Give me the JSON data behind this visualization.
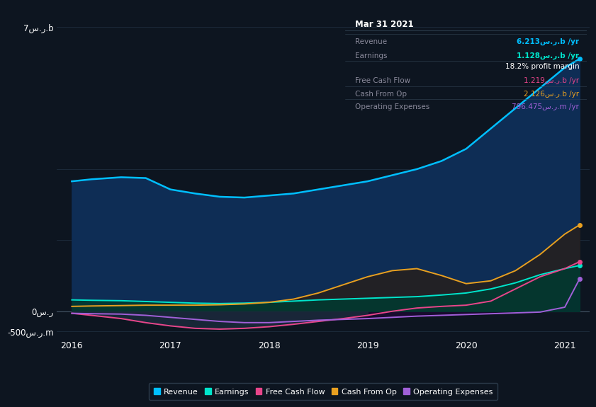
{
  "background_color": "#0d1520",
  "plot_bg_color": "#0d1520",
  "x_years": [
    2016.0,
    2016.2,
    2016.5,
    2016.75,
    2017.0,
    2017.25,
    2017.5,
    2017.75,
    2018.0,
    2018.25,
    2018.5,
    2018.75,
    2019.0,
    2019.25,
    2019.5,
    2019.75,
    2020.0,
    2020.25,
    2020.5,
    2020.75,
    2021.0,
    2021.15
  ],
  "revenue": [
    3.2,
    3.25,
    3.3,
    3.28,
    3.0,
    2.9,
    2.82,
    2.8,
    2.85,
    2.9,
    3.0,
    3.1,
    3.2,
    3.35,
    3.5,
    3.7,
    4.0,
    4.5,
    5.0,
    5.5,
    6.0,
    6.213
  ],
  "earnings": [
    0.28,
    0.27,
    0.26,
    0.24,
    0.22,
    0.2,
    0.19,
    0.2,
    0.22,
    0.25,
    0.28,
    0.3,
    0.32,
    0.34,
    0.36,
    0.4,
    0.45,
    0.55,
    0.7,
    0.9,
    1.05,
    1.128
  ],
  "free_cash_flow": [
    -0.05,
    -0.1,
    -0.18,
    -0.28,
    -0.36,
    -0.42,
    -0.44,
    -0.42,
    -0.38,
    -0.32,
    -0.25,
    -0.18,
    -0.1,
    0.0,
    0.08,
    0.12,
    0.15,
    0.25,
    0.55,
    0.85,
    1.05,
    1.219
  ],
  "cash_from_op": [
    0.12,
    0.13,
    0.14,
    0.15,
    0.15,
    0.15,
    0.16,
    0.18,
    0.22,
    0.3,
    0.45,
    0.65,
    0.85,
    1.0,
    1.05,
    0.88,
    0.68,
    0.75,
    1.0,
    1.4,
    1.9,
    2.126
  ],
  "operating_expenses": [
    -0.05,
    -0.06,
    -0.07,
    -0.1,
    -0.15,
    -0.2,
    -0.25,
    -0.28,
    -0.28,
    -0.25,
    -0.22,
    -0.2,
    -0.18,
    -0.15,
    -0.12,
    -0.1,
    -0.08,
    -0.06,
    -0.04,
    -0.02,
    0.1,
    0.796
  ],
  "colors": {
    "revenue": "#00bfff",
    "earnings": "#00e5cc",
    "free_cash_flow": "#e8458a",
    "cash_from_op": "#e8a020",
    "operating_expenses": "#a060d8"
  },
  "info_box": {
    "title": "Mar 31 2021",
    "rows": [
      {
        "label": "Revenue",
        "value": "6.213س.ر.b /yr",
        "color": "#00bfff"
      },
      {
        "label": "Earnings",
        "value": "1.128س.ر.b /yr",
        "color": "#00e5cc"
      },
      {
        "label": "",
        "value": "18.2% profit margin",
        "color": "#ffffff"
      },
      {
        "label": "Free Cash Flow",
        "value": "1.219س.ر.b /yr",
        "color": "#e8458a"
      },
      {
        "label": "Cash From Op",
        "value": "2.126س.ر.b /yr",
        "color": "#e8a020"
      },
      {
        "label": "Operating Expenses",
        "value": "796.475س.ر.m /yr",
        "color": "#a060d8"
      }
    ]
  },
  "legend": [
    {
      "label": "Revenue",
      "color": "#00bfff"
    },
    {
      "label": "Earnings",
      "color": "#00e5cc"
    },
    {
      "label": "Free Cash Flow",
      "color": "#e8458a"
    },
    {
      "label": "Cash From Op",
      "color": "#e8a020"
    },
    {
      "label": "Operating Expenses",
      "color": "#a060d8"
    }
  ],
  "ylim": [
    -0.65,
    7.5
  ],
  "xlim": [
    2015.85,
    2021.25
  ],
  "xticks": [
    2016,
    2017,
    2018,
    2019,
    2020,
    2021
  ],
  "y_top_label": "7س.ر.b",
  "y_zero_label": "0س.ر",
  "y_bottom_label": "-500س.ر.m",
  "y_top_val": 7.0,
  "y_zero_val": 0.0,
  "y_bottom_val": -0.5,
  "grid_lines": [
    7.0,
    3.5,
    1.75,
    0.0,
    -0.5
  ]
}
